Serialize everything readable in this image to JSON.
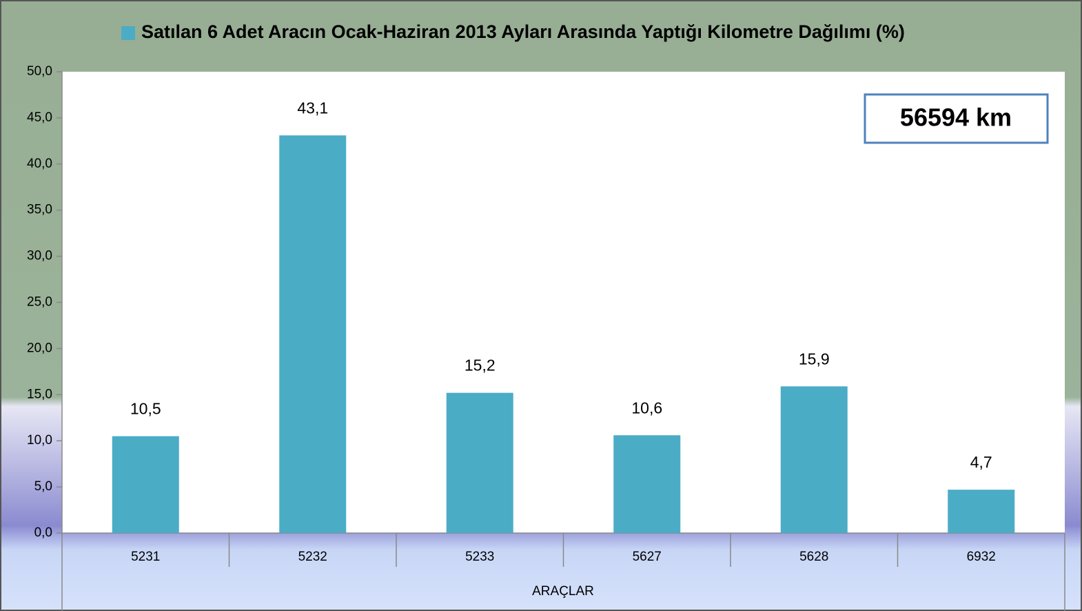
{
  "chart_data": {
    "type": "bar",
    "categories": [
      "5231",
      "5232",
      "5233",
      "5627",
      "5628",
      "6932"
    ],
    "series": [
      {
        "name": "Satılan 6 Adet Aracın Ocak-Haziran 2013 Ayları Arasında Yaptığı Kilometre Dağılımı (%)",
        "color": "#4bacc6",
        "values": [
          10.5,
          43.1,
          15.2,
          10.6,
          15.9,
          4.7
        ],
        "value_labels": [
          "10,5",
          "43,1",
          "15,2",
          "10,6",
          "15,9",
          "4,7"
        ]
      }
    ],
    "x_label": "ARAÇLAR",
    "annotation": "56594 km",
    "ylim": [
      0,
      50
    ],
    "yticks": [
      {
        "value": 0,
        "label": "0,0"
      },
      {
        "value": 5,
        "label": "5,0"
      },
      {
        "value": 10,
        "label": "10,0"
      },
      {
        "value": 15,
        "label": "15,0"
      },
      {
        "value": 20,
        "label": "20,0"
      },
      {
        "value": 25,
        "label": "25,0"
      },
      {
        "value": 30,
        "label": "30,0"
      },
      {
        "value": 35,
        "label": "35,0"
      },
      {
        "value": 40,
        "label": "40,0"
      },
      {
        "value": 45,
        "label": "45,0"
      },
      {
        "value": 50,
        "label": "50,0"
      }
    ],
    "grid": false,
    "legend": "top"
  }
}
